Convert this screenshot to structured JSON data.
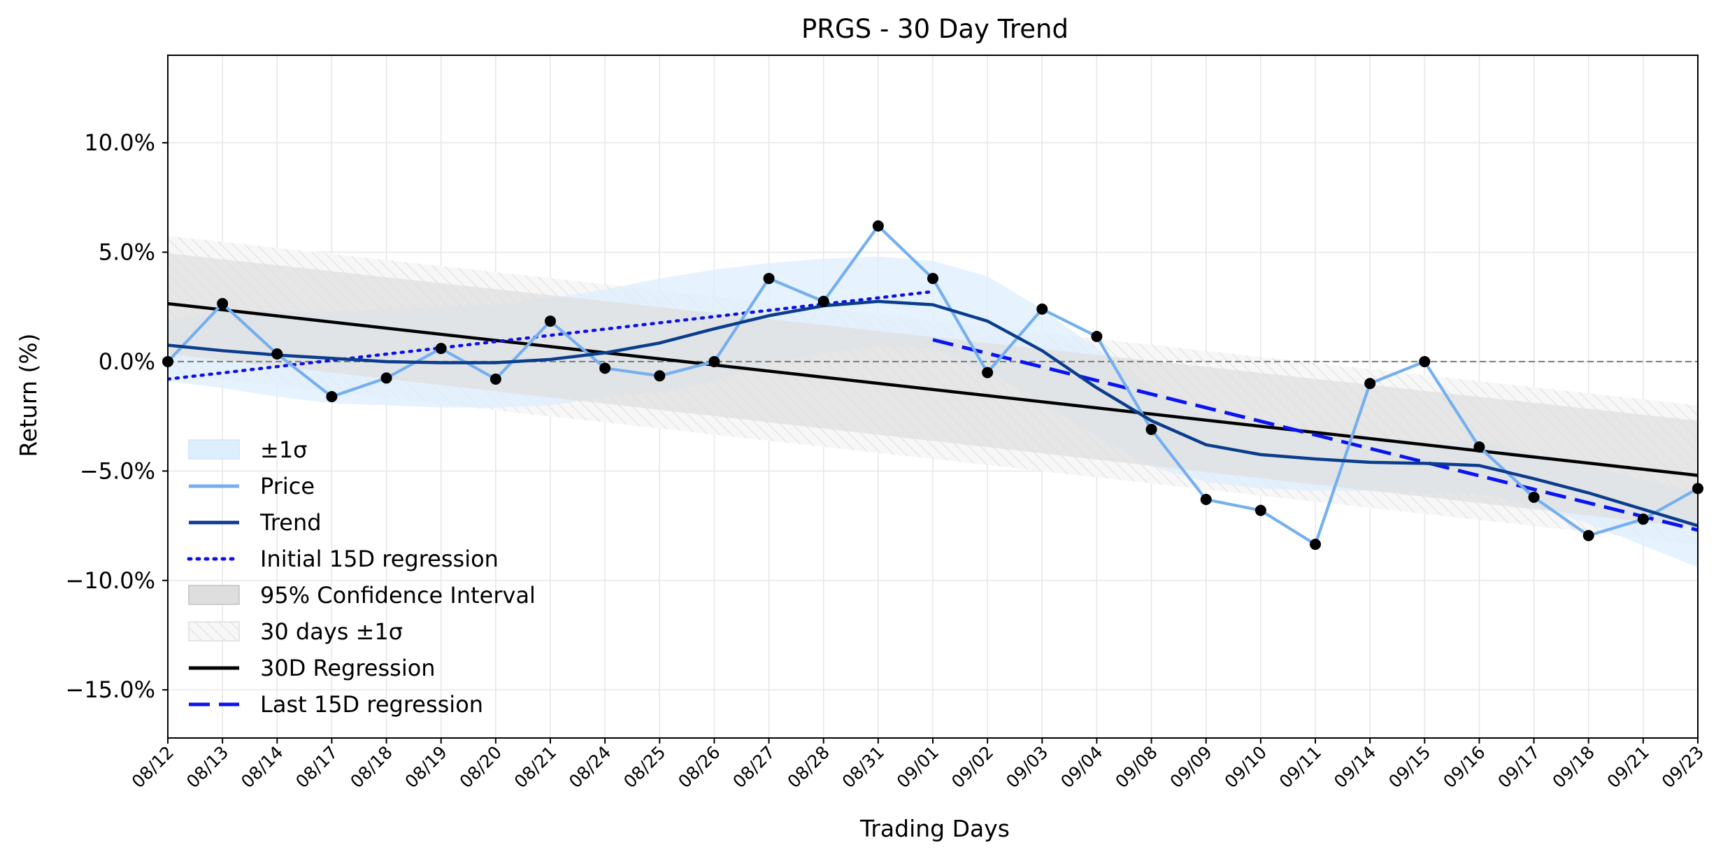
{
  "chart_data": {
    "type": "line",
    "title": "PRGS - 30 Day Trend",
    "xlabel": "Trading Days",
    "ylabel": "Return (%)",
    "ylim": [
      -17.2,
      14.0
    ],
    "yticks": [
      10.0,
      5.0,
      0.0,
      -5.0,
      -10.0,
      -15.0
    ],
    "ytick_labels": [
      "10.0%",
      "5.0%",
      "0.0%",
      "−5.0%",
      "−10.0%",
      "−15.0%"
    ],
    "grid": true,
    "legend_position": "lower-left",
    "categories": [
      "08/12",
      "08/13",
      "08/14",
      "08/17",
      "08/18",
      "08/19",
      "08/20",
      "08/21",
      "08/24",
      "08/25",
      "08/26",
      "08/27",
      "08/28",
      "08/31",
      "09/01",
      "09/02",
      "09/03",
      "09/04",
      "09/08",
      "09/09",
      "09/10",
      "09/11",
      "09/14",
      "09/15",
      "09/16",
      "09/17",
      "09/18",
      "09/21",
      "09/23"
    ],
    "series": [
      {
        "name": "Price",
        "color": "#74aff0",
        "style": "solid",
        "values": [
          0.0,
          2.65,
          0.35,
          -1.6,
          -0.75,
          0.6,
          -0.8,
          1.85,
          -0.3,
          -0.65,
          0.0,
          3.8,
          2.75,
          6.2,
          3.8,
          -0.5,
          2.4,
          1.15,
          -3.1,
          -6.3,
          -6.8,
          -8.35,
          -1.0,
          0.0,
          -3.9,
          -6.2,
          -7.95,
          -7.2,
          -5.8
        ]
      },
      {
        "name": "Trend",
        "color": "#0b3d8c",
        "style": "solid",
        "values": [
          0.75,
          0.5,
          0.3,
          0.15,
          0.0,
          -0.05,
          -0.05,
          0.1,
          0.4,
          0.85,
          1.5,
          2.1,
          2.55,
          2.75,
          2.6,
          1.85,
          0.5,
          -1.2,
          -2.7,
          -3.8,
          -4.25,
          -4.45,
          -4.6,
          -4.65,
          -4.75,
          -5.35,
          -6.0,
          -6.75,
          -7.5
        ]
      }
    ],
    "band_sigma": {
      "name": "±1σ",
      "color": "#ddeefc",
      "upper": [
        1.9,
        2.3,
        2.3,
        2.3,
        2.4,
        2.5,
        2.6,
        2.9,
        3.3,
        3.8,
        4.2,
        4.5,
        4.7,
        4.8,
        4.6,
        3.9,
        2.4,
        0.6,
        -1.2,
        -2.4,
        -3.0,
        -3.3,
        -3.6,
        -3.7,
        -3.6,
        -4.2,
        -4.8,
        -5.4,
        -5.9
      ],
      "lower": [
        -0.9,
        -1.2,
        -1.6,
        -1.9,
        -2.0,
        -2.1,
        -2.1,
        -2.0,
        -1.6,
        -1.4,
        -0.9,
        -0.1,
        0.4,
        0.7,
        0.6,
        -0.4,
        -1.9,
        -3.4,
        -4.8,
        -5.5,
        -5.8,
        -5.9,
        -5.9,
        -6.0,
        -6.0,
        -6.6,
        -7.4,
        -8.4,
        -9.4
      ]
    },
    "band_ci": {
      "name": "95% Confidence Interval",
      "color": "#dedede",
      "upper_start": 4.95,
      "upper_end": -2.7,
      "lower_start": 0.35,
      "lower_end": -7.6
    },
    "band_hatched": {
      "name": "30 days ±1σ",
      "upper_start": 5.75,
      "upper_end": -2.0,
      "lower_start": -0.55,
      "lower_end": -8.35
    },
    "regression_30d": {
      "name": "30D Regression",
      "color": "#000000",
      "start": 2.65,
      "end": -5.2
    },
    "regression_initial_15d": {
      "name": "Initial 15D regression",
      "color": "#1010e6",
      "start_index": 0,
      "end_index": 14,
      "start": -0.8,
      "end": 3.2
    },
    "regression_last_15d": {
      "name": "Last 15D regression",
      "color": "#0a14f0",
      "start_index": 14,
      "end_index": 28,
      "start": 1.0,
      "end": -7.7
    },
    "zero_line": {
      "value": 0.0,
      "color": "#808080"
    },
    "legend": [
      {
        "label": "±1σ",
        "kind": "patch",
        "color": "#ddeefc"
      },
      {
        "label": "Price",
        "kind": "line",
        "color": "#74aff0",
        "style": "solid"
      },
      {
        "label": "Trend",
        "kind": "line",
        "color": "#0b3d8c",
        "style": "solid"
      },
      {
        "label": "Initial 15D regression",
        "kind": "line",
        "color": "#1010e6",
        "style": "dotted"
      },
      {
        "label": "95% Confidence Interval",
        "kind": "patch",
        "color": "#dedede"
      },
      {
        "label": "30 days ±1σ",
        "kind": "hatch",
        "color": "#f4f4f4"
      },
      {
        "label": "30D Regression",
        "kind": "line",
        "color": "#000000",
        "style": "solid"
      },
      {
        "label": "Last 15D regression",
        "kind": "line",
        "color": "#0a14f0",
        "style": "dashed"
      }
    ]
  }
}
